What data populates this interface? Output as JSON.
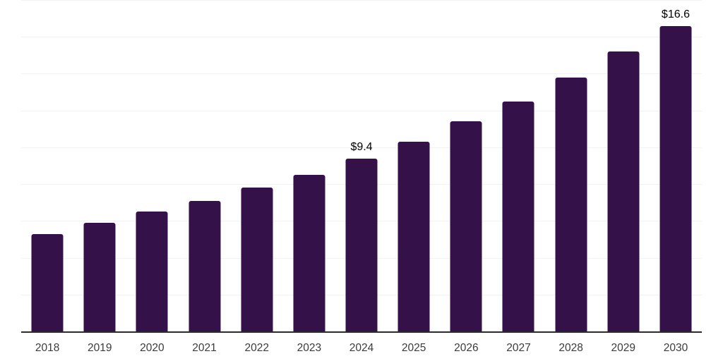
{
  "chart_data": {
    "type": "bar",
    "title": "",
    "xlabel": "",
    "ylabel": "",
    "categories": [
      "2018",
      "2019",
      "2020",
      "2021",
      "2022",
      "2023",
      "2024",
      "2025",
      "2026",
      "2027",
      "2028",
      "2029",
      "2030"
    ],
    "values": [
      5.3,
      5.9,
      6.5,
      7.1,
      7.8,
      8.5,
      9.4,
      10.3,
      11.4,
      12.5,
      13.8,
      15.2,
      16.6
    ],
    "data_labels": {
      "2024": "$9.4",
      "2030": "$16.6"
    },
    "value_prefix": "$",
    "ylim": [
      0,
      18
    ],
    "grid": {
      "visible": true,
      "step": 2
    },
    "legend": "none",
    "colors": {
      "bar": "#35114A",
      "gridline": "#f2f2f2",
      "axis_line": "#2b2b2b",
      "tick_label": "#3b3b3b",
      "data_label": "#000000",
      "background": "#ffffff"
    }
  }
}
